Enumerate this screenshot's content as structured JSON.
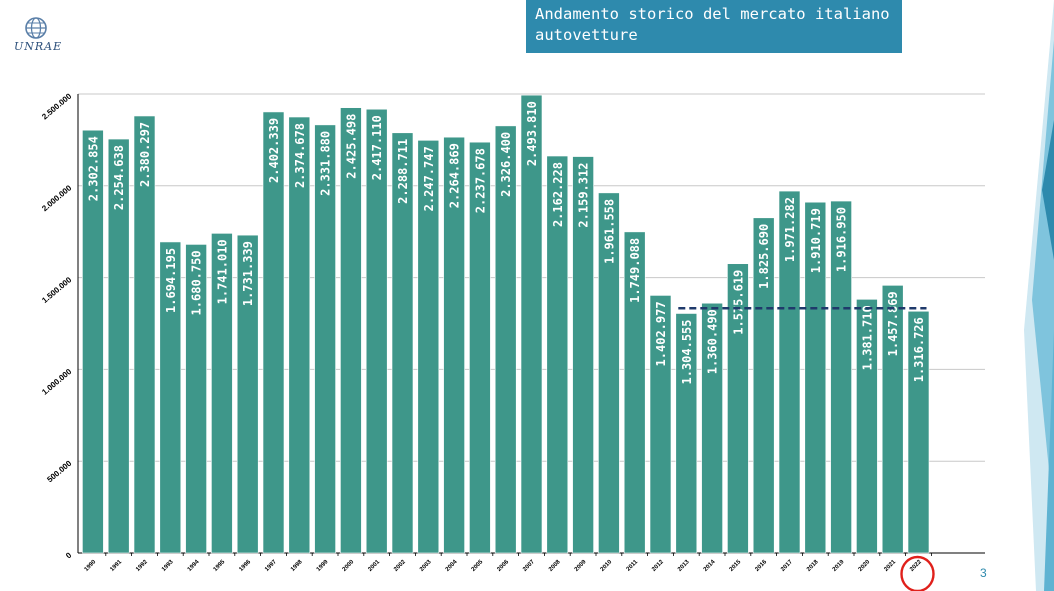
{
  "header": {
    "logo_text": "UNRAE",
    "title": "Andamento storico del mercato italiano autovetture",
    "page_number": "3"
  },
  "colors": {
    "bar": "#3e978a",
    "title_bg": "#2e8aad",
    "reference_line": "#1f3a6b",
    "highlight_circle": "#e0201b"
  },
  "chart_data": {
    "type": "bar",
    "title": "Andamento storico del mercato italiano autovetture",
    "xlabel": "",
    "ylabel": "",
    "ylim": [
      0,
      2500000
    ],
    "yticks": [
      0,
      500000,
      1000000,
      1500000,
      2000000,
      2500000
    ],
    "ytick_labels": [
      "0",
      "500.000",
      "1.000.000",
      "1.500.000",
      "2.000.000",
      "2.500.000"
    ],
    "grid": true,
    "categories": [
      "1990",
      "1991",
      "1992",
      "1993",
      "1994",
      "1995",
      "1996",
      "1997",
      "1998",
      "1999",
      "2000",
      "2001",
      "2002",
      "2003",
      "2004",
      "2005",
      "2006",
      "2007",
      "2008",
      "2009",
      "2010",
      "2011",
      "2012",
      "2013",
      "2014",
      "2015",
      "2016",
      "2017",
      "2018",
      "2019",
      "2020",
      "2021",
      "2022"
    ],
    "values": [
      2302854,
      2254638,
      2380297,
      1694195,
      1680750,
      1741010,
      1731339,
      2402339,
      2374678,
      2331880,
      2425498,
      2417110,
      2288711,
      2247747,
      2264869,
      2237678,
      2326400,
      2493810,
      2162228,
      2159312,
      1961558,
      1749088,
      1402977,
      1304555,
      1360490,
      1575619,
      1825690,
      1971282,
      1910719,
      1916950,
      1381710,
      1457869,
      1316726
    ],
    "value_labels": [
      "2.302.854",
      "2.254.638",
      "2.380.297",
      "1.694.195",
      "1.680.750",
      "1.741.010",
      "1.731.339",
      "2.402.339",
      "2.374.678",
      "2.331.880",
      "2.425.498",
      "2.417.110",
      "2.288.711",
      "2.247.747",
      "2.264.869",
      "2.237.678",
      "2.326.400",
      "2.493.810",
      "2.162.228",
      "2.159.312",
      "1.961.558",
      "1.749.088",
      "1.402.977",
      "1.304.555",
      "1.360.490",
      "1.575.619",
      "1.825.690",
      "1.971.282",
      "1.910.719",
      "1.916.950",
      "1.381.710",
      "1.457.869",
      "1.316.726"
    ],
    "annotations": {
      "reference_line": {
        "value": 1316726,
        "from_category": "2013",
        "to_category": "2022",
        "style": "dashed"
      },
      "highlight_category": "2022"
    }
  }
}
